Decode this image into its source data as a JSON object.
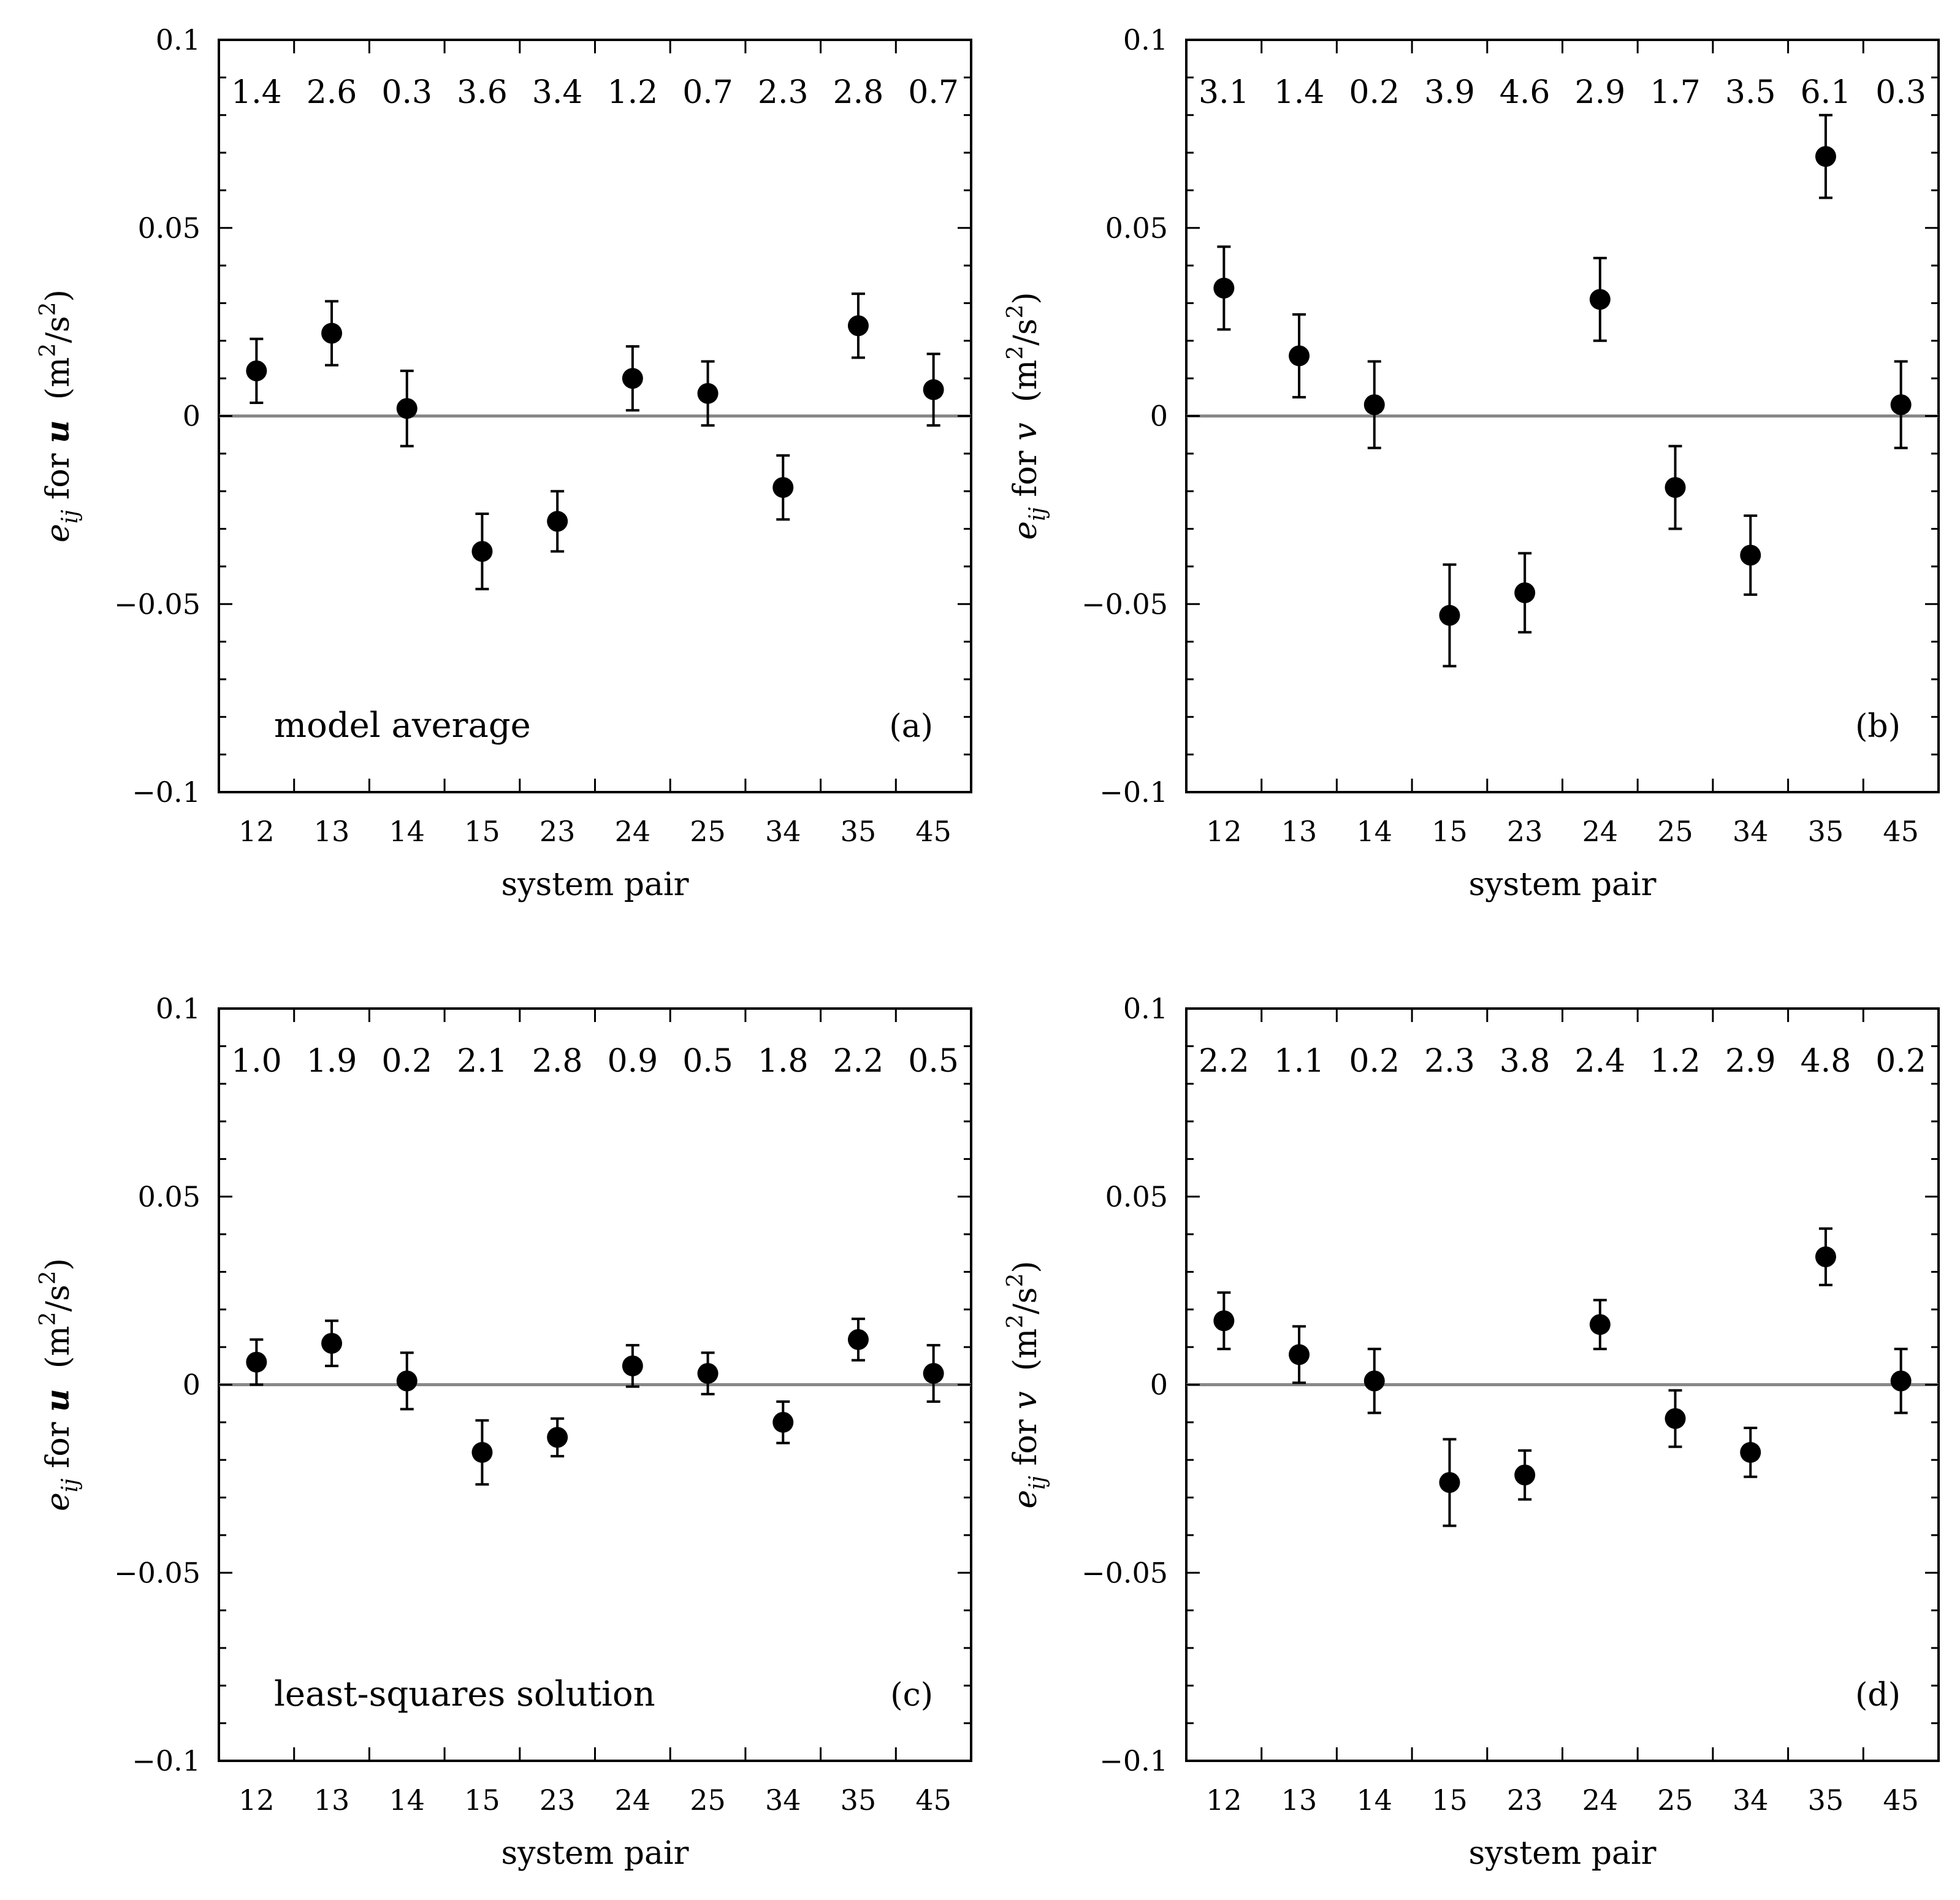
{
  "figure": {
    "xlabel": "system pair",
    "yticks": [
      "0.1",
      "0.05",
      "0",
      "−0.05",
      "−0.1"
    ],
    "ylim": [
      -0.1,
      0.1
    ]
  },
  "chart_data": [
    {
      "type": "scatter",
      "panel": "(a)",
      "annotation": "model average",
      "ylabel": {
        "e": "e",
        "sub": "ij",
        "mid": " for ",
        "var": "u",
        "units": "(m",
        "sup": "2",
        "tail": "/s",
        "sup2": "2",
        "close": ")"
      },
      "categories": [
        "12",
        "13",
        "14",
        "15",
        "23",
        "24",
        "25",
        "34",
        "35",
        "45"
      ],
      "values": [
        0.012,
        0.022,
        0.002,
        -0.036,
        -0.028,
        0.01,
        0.006,
        -0.019,
        0.024,
        0.007
      ],
      "errors": [
        0.0085,
        0.0085,
        0.01,
        0.01,
        0.008,
        0.0085,
        0.0085,
        0.0085,
        0.0085,
        0.0095
      ],
      "ratios": [
        "1.4",
        "2.6",
        "0.3",
        "3.6",
        "3.4",
        "1.2",
        "0.7",
        "2.3",
        "2.8",
        "0.7"
      ],
      "xlabel": "system pair",
      "ylim": [
        -0.1,
        0.1
      ]
    },
    {
      "type": "scatter",
      "panel": "(b)",
      "annotation": "",
      "ylabel": {
        "e": "e",
        "sub": "ij",
        "mid": " for ",
        "var": "v",
        "units": "(m",
        "sup": "2",
        "tail": "/s",
        "sup2": "2",
        "close": ")"
      },
      "categories": [
        "12",
        "13",
        "14",
        "15",
        "23",
        "24",
        "25",
        "34",
        "35",
        "45"
      ],
      "values": [
        0.034,
        0.016,
        0.003,
        -0.053,
        -0.047,
        0.031,
        -0.019,
        -0.037,
        0.069,
        0.003
      ],
      "errors": [
        0.011,
        0.011,
        0.0115,
        0.0135,
        0.0105,
        0.011,
        0.011,
        0.0105,
        0.011,
        0.0115
      ],
      "ratios": [
        "3.1",
        "1.4",
        "0.2",
        "3.9",
        "4.6",
        "2.9",
        "1.7",
        "3.5",
        "6.1",
        "0.3"
      ],
      "xlabel": "system pair",
      "ylim": [
        -0.1,
        0.1
      ]
    },
    {
      "type": "scatter",
      "panel": "(c)",
      "annotation": "least-squares solution",
      "ylabel": {
        "e": "e",
        "sub": "ij",
        "mid": " for ",
        "var": "u",
        "units": "(m",
        "sup": "2",
        "tail": "/s",
        "sup2": "2",
        "close": ")"
      },
      "categories": [
        "12",
        "13",
        "14",
        "15",
        "23",
        "24",
        "25",
        "34",
        "35",
        "45"
      ],
      "values": [
        0.006,
        0.011,
        0.001,
        -0.018,
        -0.014,
        0.005,
        0.003,
        -0.01,
        0.012,
        0.003
      ],
      "errors": [
        0.006,
        0.006,
        0.0075,
        0.0085,
        0.005,
        0.0055,
        0.0055,
        0.0055,
        0.0055,
        0.0075
      ],
      "ratios": [
        "1.0",
        "1.9",
        "0.2",
        "2.1",
        "2.8",
        "0.9",
        "0.5",
        "1.8",
        "2.2",
        "0.5"
      ],
      "xlabel": "system pair",
      "ylim": [
        -0.1,
        0.1
      ]
    },
    {
      "type": "scatter",
      "panel": "(d)",
      "annotation": "",
      "ylabel": {
        "e": "e",
        "sub": "ij",
        "mid": " for ",
        "var": "v",
        "units": "(m",
        "sup": "2",
        "tail": "/s",
        "sup2": "2",
        "close": ")"
      },
      "categories": [
        "12",
        "13",
        "14",
        "15",
        "23",
        "24",
        "25",
        "34",
        "35",
        "45"
      ],
      "values": [
        0.017,
        0.008,
        0.001,
        -0.026,
        -0.024,
        0.016,
        -0.009,
        -0.018,
        0.034,
        0.001
      ],
      "errors": [
        0.0075,
        0.0075,
        0.0085,
        0.0115,
        0.0065,
        0.0065,
        0.0075,
        0.0065,
        0.0075,
        0.0085
      ],
      "ratios": [
        "2.2",
        "1.1",
        "0.2",
        "2.3",
        "3.8",
        "2.4",
        "1.2",
        "2.9",
        "4.8",
        "0.2"
      ],
      "xlabel": "system pair",
      "ylim": [
        -0.1,
        0.1
      ]
    }
  ]
}
